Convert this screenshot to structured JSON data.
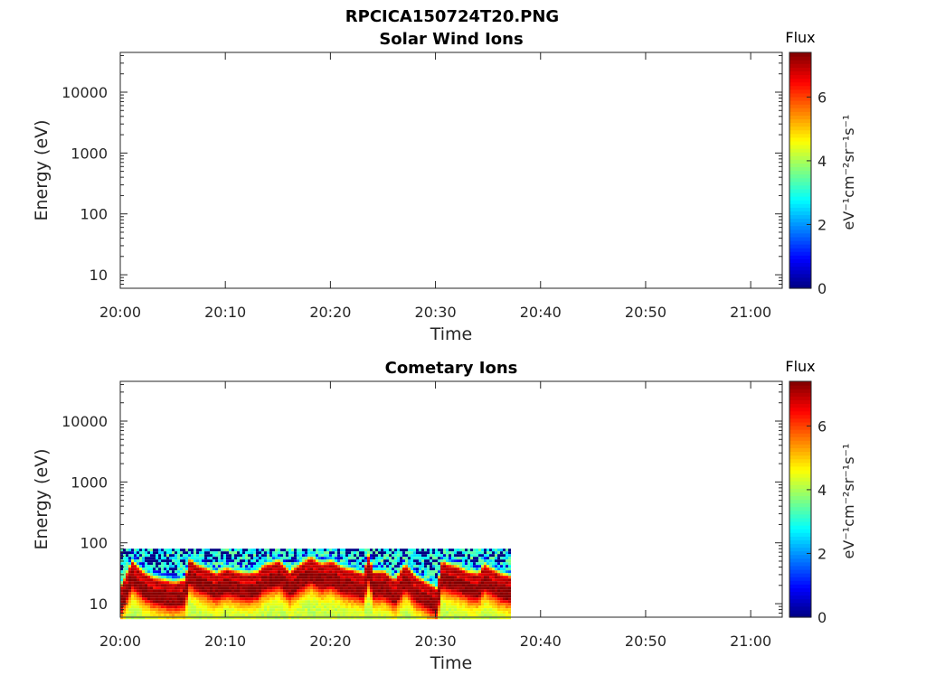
{
  "figure_title": "RPCICA150724T20.PNG",
  "chart_data": [
    {
      "type": "heatmap",
      "title": "Solar Wind Ions",
      "xlabel": "Time",
      "ylabel": "Energy (eV)",
      "y_scale": "log",
      "ylim": [
        6,
        45000
      ],
      "x_ticks": [
        "20:00",
        "20:10",
        "20:20",
        "20:30",
        "20:40",
        "20:50",
        "21:00"
      ],
      "x_range_minutes": [
        0,
        63
      ],
      "y_ticks": [
        {
          "value": 10,
          "label": "10"
        },
        {
          "value": 100,
          "label": "100"
        },
        {
          "value": 1000,
          "label": "1000"
        },
        {
          "value": 10000,
          "label": "10000"
        }
      ],
      "colorbar": {
        "title": "Flux",
        "label": "eV⁻¹cm⁻²sr⁻¹s⁻¹",
        "range": [
          0,
          7.4
        ],
        "ticks": [
          "0",
          "2",
          "4",
          "6"
        ],
        "colormap": "jet"
      },
      "data": []
    },
    {
      "type": "heatmap",
      "title": "Cometary Ions",
      "xlabel": "Time",
      "ylabel": "Energy (eV)",
      "y_scale": "log",
      "ylim": [
        6,
        45000
      ],
      "x_ticks": [
        "20:00",
        "20:10",
        "20:20",
        "20:30",
        "20:40",
        "20:50",
        "21:00"
      ],
      "x_range_minutes": [
        0,
        63
      ],
      "y_ticks": [
        {
          "value": 10,
          "label": "10"
        },
        {
          "value": 100,
          "label": "100"
        },
        {
          "value": 1000,
          "label": "1000"
        },
        {
          "value": 10000,
          "label": "10000"
        }
      ],
      "colorbar": {
        "title": "Flux",
        "label": "eV⁻¹cm⁻²sr⁻¹s⁻¹",
        "range": [
          0,
          7.4
        ],
        "ticks": [
          "0",
          "2",
          "4",
          "6"
        ],
        "colormap": "jet"
      },
      "data_time_range_minutes": [
        0,
        37
      ],
      "data_energy_range_ev": [
        6,
        80
      ],
      "peak_energy_ev": [
        [
          0,
          18
        ],
        [
          1,
          45
        ],
        [
          2,
          30
        ],
        [
          3,
          24
        ],
        [
          4,
          22
        ],
        [
          5,
          20
        ],
        [
          6,
          22
        ],
        [
          6.5,
          50
        ],
        [
          7,
          40
        ],
        [
          8,
          34
        ],
        [
          9,
          28
        ],
        [
          10,
          34
        ],
        [
          11,
          30
        ],
        [
          12,
          28
        ],
        [
          13,
          30
        ],
        [
          13.5,
          38
        ],
        [
          14,
          40
        ],
        [
          15,
          45
        ],
        [
          16,
          30
        ],
        [
          17,
          40
        ],
        [
          18,
          52
        ],
        [
          19,
          40
        ],
        [
          20,
          45
        ],
        [
          21,
          35
        ],
        [
          22,
          32
        ],
        [
          23,
          28
        ],
        [
          23.5,
          55
        ],
        [
          24,
          30
        ],
        [
          25,
          30
        ],
        [
          26,
          22
        ],
        [
          27,
          40
        ],
        [
          28,
          25
        ],
        [
          29,
          20
        ],
        [
          30,
          16
        ],
        [
          30.5,
          45
        ],
        [
          31,
          40
        ],
        [
          32,
          36
        ],
        [
          33,
          30
        ],
        [
          34,
          28
        ],
        [
          34.5,
          40
        ],
        [
          35,
          35
        ],
        [
          36,
          28
        ],
        [
          37,
          25
        ]
      ]
    }
  ]
}
